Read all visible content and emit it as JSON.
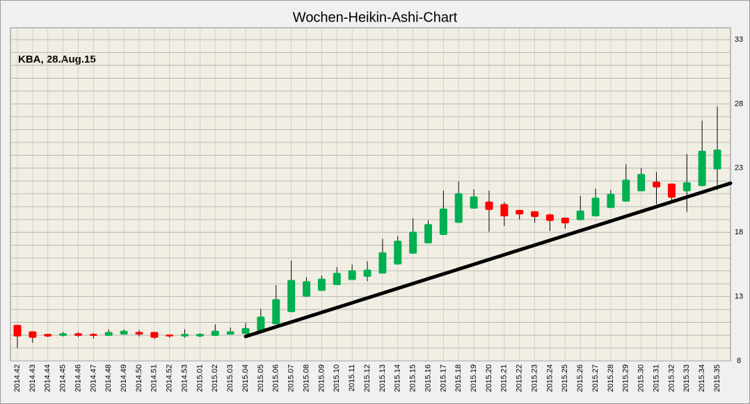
{
  "chart_data": {
    "type": "candlestick",
    "title": "Wochen-Heikin-Ashi-Chart",
    "annotation": "KBA, 28.Aug.15",
    "categories": [
      "2014.42",
      "2014.43",
      "2014.44",
      "2014.45",
      "2014.46",
      "2014.47",
      "2014.48",
      "2014.49",
      "2014.50",
      "2014.51",
      "2014.52",
      "2014.53",
      "2015.01",
      "2015.02",
      "2015.03",
      "2015.04",
      "2015.05",
      "2015.06",
      "2015.07",
      "2015.08",
      "2015.09",
      "2015.10",
      "2015.11",
      "2015.12",
      "2015.13",
      "2015.14",
      "2015.15",
      "2015.16",
      "2015.17",
      "2015.18",
      "2015.19",
      "2015.20",
      "2015.21",
      "2015.22",
      "2015.23",
      "2015.24",
      "2015.25",
      "2015.26",
      "2015.27",
      "2015.28",
      "2015.29",
      "2015.30",
      "2015.31",
      "2015.32",
      "2015.33",
      "2015.34",
      "2015.35"
    ],
    "open": [
      10.8,
      10.3,
      10.1,
      9.95,
      10.15,
      10.1,
      9.95,
      10.05,
      10.25,
      10.25,
      10.05,
      9.9,
      9.9,
      9.95,
      10.05,
      10.1,
      10.3,
      10.85,
      11.8,
      13.0,
      13.45,
      13.9,
      14.3,
      14.55,
      14.8,
      15.5,
      16.35,
      17.15,
      17.8,
      18.75,
      19.85,
      20.4,
      20.2,
      19.75,
      19.65,
      19.4,
      19.15,
      18.95,
      19.25,
      19.9,
      20.4,
      21.2,
      21.95,
      21.8,
      21.2,
      21.6,
      22.9
    ],
    "high": [
      10.8,
      10.3,
      10.1,
      10.25,
      10.25,
      10.15,
      10.45,
      10.45,
      10.4,
      10.25,
      10.05,
      10.45,
      10.15,
      10.85,
      10.6,
      10.95,
      12.05,
      13.9,
      15.8,
      14.5,
      14.65,
      15.3,
      15.5,
      15.75,
      17.5,
      17.7,
      19.1,
      18.95,
      21.25,
      21.95,
      21.35,
      21.25,
      20.35,
      19.75,
      19.65,
      19.45,
      19.15,
      20.85,
      21.4,
      21.3,
      23.3,
      23.0,
      22.7,
      21.8,
      24.1,
      26.7,
      27.8
    ],
    "low": [
      9.0,
      9.4,
      9.85,
      9.9,
      9.85,
      9.75,
      9.95,
      10.05,
      9.9,
      9.7,
      9.8,
      9.8,
      9.85,
      9.95,
      10.05,
      10.1,
      10.3,
      10.85,
      11.8,
      13.0,
      13.45,
      13.9,
      14.3,
      14.2,
      14.8,
      15.5,
      16.35,
      17.15,
      17.8,
      18.75,
      19.85,
      18.05,
      18.5,
      19.0,
      18.75,
      18.1,
      18.3,
      18.95,
      19.25,
      19.9,
      20.4,
      21.2,
      20.2,
      20.45,
      19.6,
      21.6,
      21.3
    ],
    "close": [
      9.9,
      9.8,
      9.9,
      10.15,
      9.95,
      9.95,
      10.25,
      10.35,
      10.05,
      9.8,
      9.9,
      10.1,
      10.1,
      10.35,
      10.3,
      10.55,
      11.45,
      12.8,
      14.3,
      14.2,
      14.4,
      14.85,
      15.05,
      15.1,
      16.45,
      17.35,
      18.05,
      18.65,
      19.85,
      21.05,
      20.8,
      19.75,
      19.25,
      19.4,
      19.2,
      18.9,
      18.7,
      19.7,
      20.7,
      21.0,
      22.1,
      22.55,
      21.5,
      20.7,
      21.9,
      24.35,
      24.45
    ],
    "up_color": "#00b050",
    "down_color": "#ff0000",
    "trendline": {
      "x": [
        "2015.04",
        "2015.35"
      ],
      "values": [
        9.9,
        21.5
      ],
      "color": "#000000"
    },
    "ylim": [
      8,
      33
    ],
    "yticks": [
      8,
      13,
      18,
      23,
      28,
      33
    ],
    "ygrid": [
      8,
      9,
      10,
      11,
      12,
      13,
      14,
      15,
      16,
      17,
      18,
      19,
      20,
      21,
      22,
      23,
      24,
      25,
      26,
      27,
      28,
      29,
      30,
      31,
      32,
      33
    ],
    "grid": true
  }
}
